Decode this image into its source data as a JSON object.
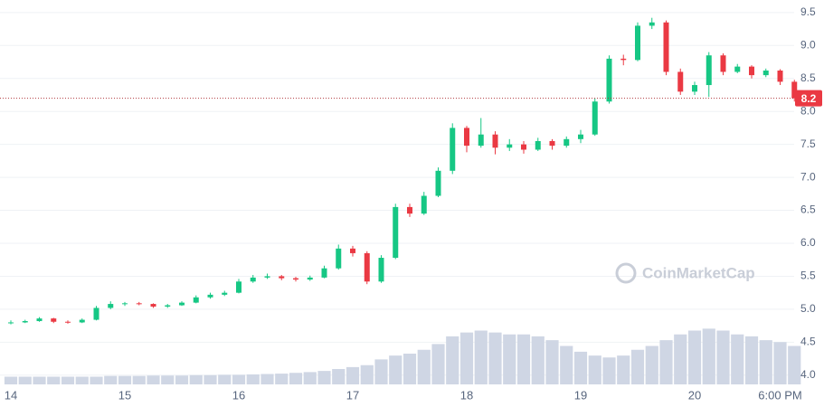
{
  "chart_data": {
    "type": "candlestick",
    "categories": [
      "14",
      null,
      null,
      null,
      null,
      null,
      null,
      null,
      "15",
      null,
      null,
      null,
      null,
      null,
      null,
      null,
      "16",
      null,
      null,
      null,
      null,
      null,
      null,
      null,
      "17",
      null,
      null,
      null,
      null,
      null,
      null,
      null,
      "18",
      null,
      null,
      null,
      null,
      null,
      null,
      null,
      "19",
      null,
      null,
      null,
      null,
      null,
      null,
      null,
      "20",
      null,
      null,
      null,
      null,
      null,
      "6:00 PM",
      null
    ],
    "open": [
      4.79,
      4.8,
      4.82,
      4.86,
      4.81,
      4.8,
      4.84,
      5.02,
      5.08,
      5.09,
      5.08,
      5.04,
      5.06,
      5.1,
      5.18,
      5.22,
      5.25,
      5.42,
      5.48,
      5.5,
      5.47,
      5.45,
      5.48,
      5.62,
      5.92,
      5.85,
      5.42,
      5.78,
      6.55,
      6.45,
      6.72,
      7.1,
      7.75,
      7.48,
      7.65,
      7.45,
      7.5,
      7.42,
      7.55,
      7.48,
      7.58,
      7.65,
      8.15,
      8.8,
      8.78,
      9.3,
      9.35,
      8.6,
      8.3,
      8.4,
      8.85,
      8.6,
      8.68,
      8.55,
      8.62,
      8.45
    ],
    "high": [
      4.83,
      4.84,
      4.88,
      4.87,
      4.83,
      4.86,
      5.05,
      5.12,
      5.11,
      5.11,
      5.09,
      5.08,
      5.12,
      5.21,
      5.25,
      5.28,
      5.46,
      5.52,
      5.54,
      5.52,
      5.49,
      5.51,
      5.66,
      5.98,
      5.96,
      5.88,
      5.82,
      6.6,
      6.6,
      6.78,
      7.15,
      7.82,
      7.78,
      7.9,
      7.7,
      7.58,
      7.55,
      7.6,
      7.58,
      7.62,
      7.72,
      8.2,
      8.85,
      8.86,
      9.35,
      9.42,
      9.38,
      8.65,
      8.45,
      8.9,
      8.88,
      8.72,
      8.7,
      8.65,
      8.64,
      8.48
    ],
    "low": [
      4.77,
      4.79,
      4.81,
      4.79,
      4.78,
      4.79,
      4.83,
      5.0,
      5.05,
      5.06,
      5.02,
      5.02,
      5.05,
      5.09,
      5.16,
      5.2,
      5.24,
      5.4,
      5.46,
      5.44,
      5.42,
      5.43,
      5.47,
      5.6,
      5.8,
      5.38,
      5.4,
      5.76,
      6.4,
      6.43,
      6.7,
      7.05,
      7.38,
      7.45,
      7.35,
      7.4,
      7.36,
      7.4,
      7.42,
      7.45,
      7.52,
      7.63,
      8.12,
      8.7,
      8.76,
      9.25,
      8.55,
      8.25,
      8.25,
      8.22,
      8.55,
      8.58,
      8.5,
      8.52,
      8.4,
      8.15
    ],
    "close": [
      4.8,
      4.82,
      4.86,
      4.81,
      4.8,
      4.84,
      5.02,
      5.08,
      5.09,
      5.08,
      5.04,
      5.06,
      5.1,
      5.18,
      5.22,
      5.25,
      5.42,
      5.48,
      5.5,
      5.47,
      5.45,
      5.48,
      5.62,
      5.92,
      5.85,
      5.42,
      5.78,
      6.55,
      6.45,
      6.72,
      7.1,
      7.75,
      7.48,
      7.65,
      7.45,
      7.5,
      7.42,
      7.55,
      7.48,
      7.58,
      7.65,
      8.15,
      8.8,
      8.78,
      9.3,
      9.35,
      8.6,
      8.3,
      8.4,
      8.85,
      8.6,
      8.68,
      8.55,
      8.62,
      8.45,
      8.2
    ],
    "volume": [
      2,
      2,
      2,
      2,
      2,
      2,
      2,
      2.2,
      2.2,
      2.2,
      2.3,
      2.3,
      2.3,
      2.4,
      2.4,
      2.5,
      2.5,
      2.6,
      2.7,
      2.8,
      3,
      3.2,
      3.5,
      4,
      4.5,
      5,
      6.5,
      7.5,
      8,
      9,
      10.5,
      12.5,
      13.5,
      14,
      13.5,
      13,
      13,
      12.5,
      11.5,
      10,
      8.5,
      7.5,
      7,
      7.5,
      9,
      10,
      11.5,
      13,
      14,
      14.5,
      14,
      13,
      12.5,
      11.5,
      11,
      10
    ],
    "up_color": "#16c784",
    "down_color": "#ea3943",
    "volume_color": "#cfd6e4",
    "ylim": [
      3.86,
      9.69
    ],
    "yticks": [
      {
        "value": 4,
        "label": "4.0"
      },
      4.5,
      {
        "value": 5,
        "label": "5.0"
      },
      5.5,
      {
        "value": 6,
        "label": "6.0"
      },
      6.5,
      {
        "value": 7,
        "label": "7.0"
      },
      7.5,
      {
        "value": 8,
        "label": "8.0"
      },
      8.5,
      {
        "value": 9,
        "label": "9.0"
      },
      9.5
    ],
    "y2lim": [
      0,
      100
    ],
    "grid": true,
    "last_price": 8.2,
    "watermark": "CoinMarketCap"
  }
}
